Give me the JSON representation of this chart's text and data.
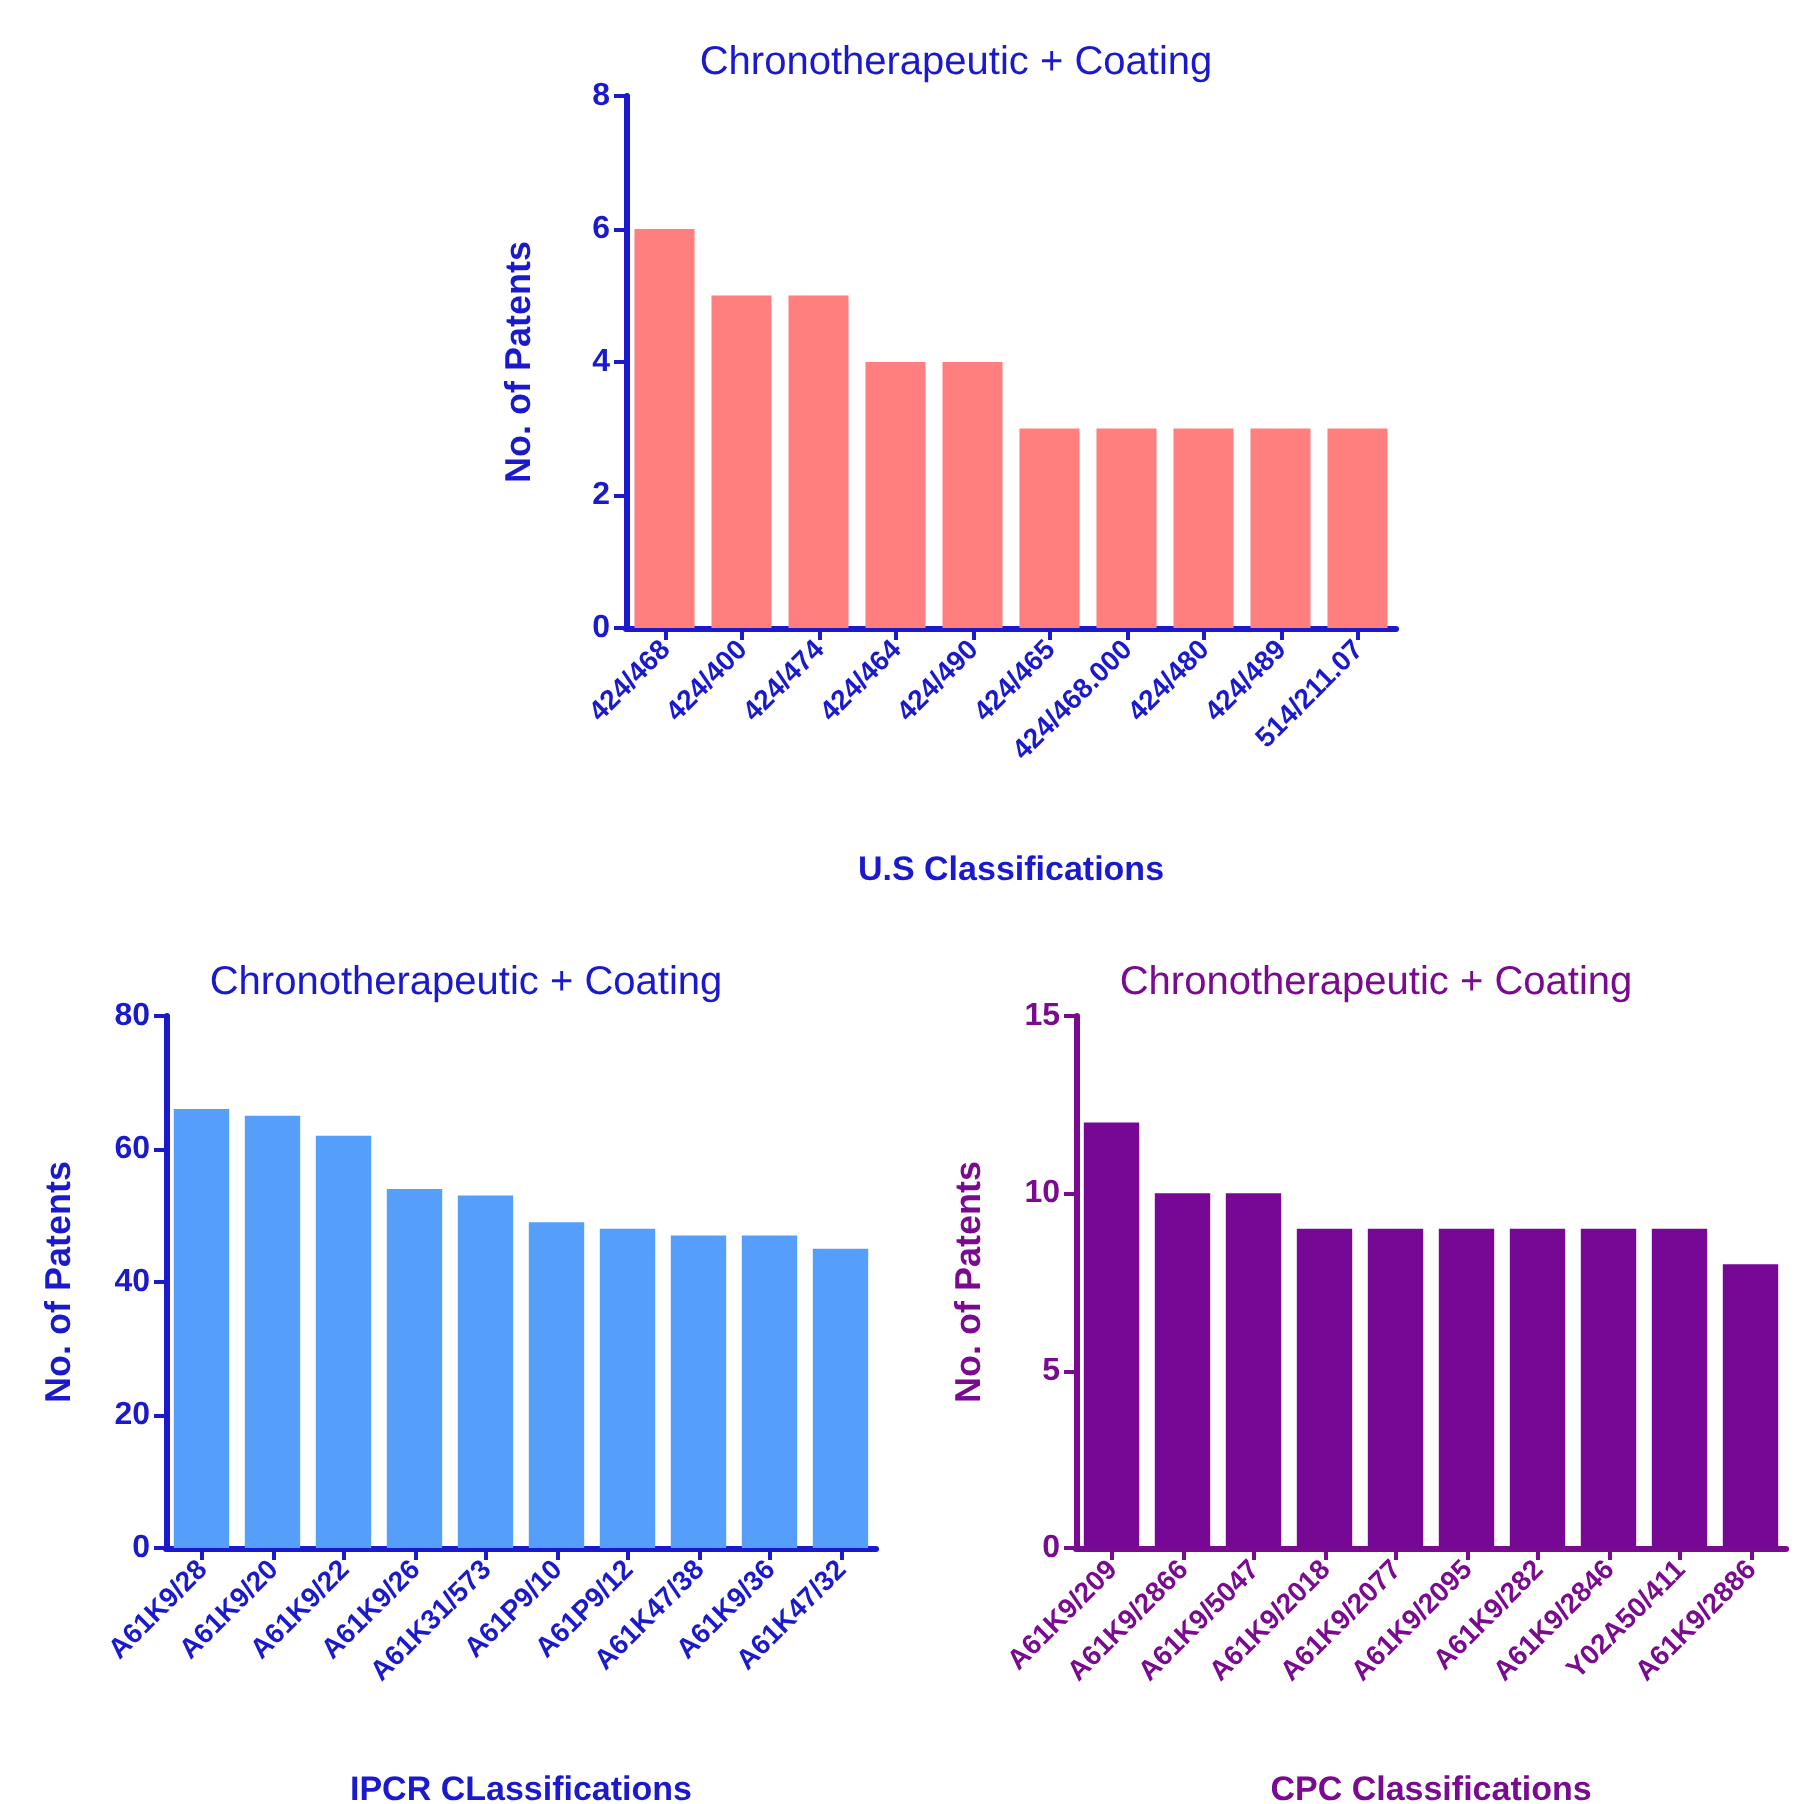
{
  "chart_data": [
    {
      "type": "bar",
      "title": "Chronotherapeutic + Coating",
      "xlabel": "U.S Classifications",
      "ylabel": "No. of Patents",
      "categories": [
        "424/468",
        "424/400",
        "424/474",
        "424/464",
        "424/490",
        "424/465",
        "424/468.000",
        "424/480",
        "424/489",
        "514/211.07"
      ],
      "values": [
        6,
        5,
        5,
        4,
        4,
        3,
        3,
        3,
        3,
        3
      ],
      "color": "#ff7f7f",
      "ylim": [
        0,
        8
      ],
      "yticks": [
        0,
        2,
        4,
        6,
        8
      ],
      "grid": false
    },
    {
      "type": "bar",
      "title": "Chronotherapeutic + Coating",
      "xlabel": "IPCR CLassifications",
      "ylabel": "No. of Patents",
      "categories": [
        "A61K9/28",
        "A61K9/20",
        "A61K9/22",
        "A61K9/26",
        "A61K31/573",
        "A61P9/10",
        "A61P9/12",
        "A61K47/38",
        "A61K9/36",
        "A61K47/32"
      ],
      "values": [
        66,
        65,
        62,
        54,
        53,
        49,
        48,
        47,
        47,
        45
      ],
      "color": "#559ffa",
      "ylim": [
        0,
        80
      ],
      "yticks": [
        0,
        20,
        40,
        60,
        80
      ],
      "grid": false
    },
    {
      "type": "bar",
      "title": "Chronotherapeutic + Coating",
      "xlabel": "CPC Classifications",
      "ylabel": "No. of Patents",
      "categories": [
        "A61K9/209",
        "A61K9/2866",
        "A61K9/5047",
        "A61K9/2018",
        "A61K9/2077",
        "A61K9/2095",
        "A61K9/282",
        "A61K9/2846",
        "Y02A50/411",
        "A61K9/2886"
      ],
      "values": [
        12,
        10,
        10,
        9,
        9,
        9,
        9,
        9,
        9,
        8
      ],
      "color": "#760895",
      "ylim": [
        0,
        15
      ],
      "yticks": [
        0,
        5,
        10,
        15
      ],
      "grid": false
    }
  ]
}
